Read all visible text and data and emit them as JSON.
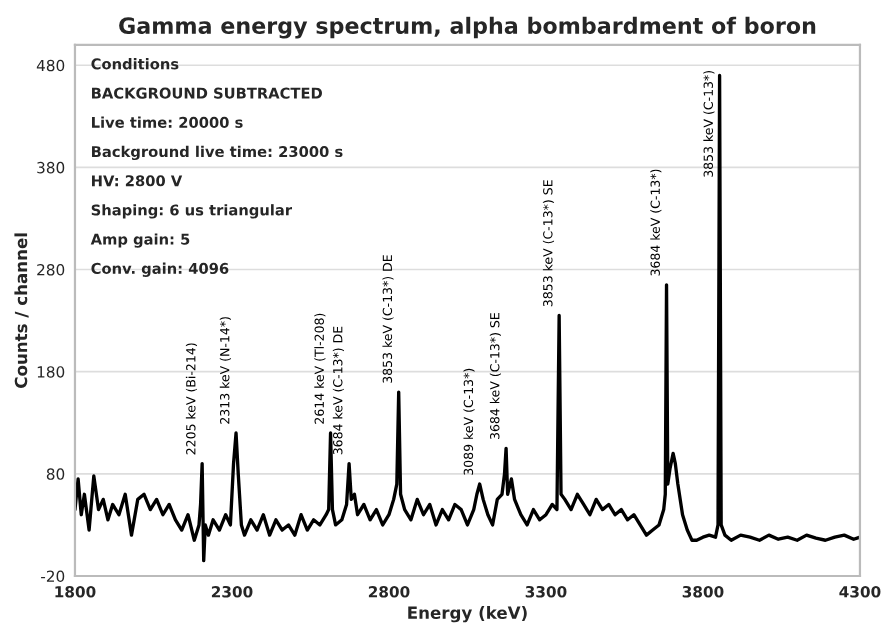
{
  "chart_data": {
    "type": "line",
    "title": "Gamma energy spectrum, alpha bombardment of boron",
    "xlabel": "Energy (keV)",
    "ylabel": "Counts / channel",
    "xlim": [
      1800,
      4300
    ],
    "xticks": [
      1800,
      2300,
      2800,
      3300,
      3800,
      4300
    ],
    "ylim": [
      -20,
      500
    ],
    "yticks": [
      -20,
      80,
      180,
      280,
      380,
      480
    ],
    "grid": "y",
    "legend": false,
    "marker": "none",
    "line_style": "solid",
    "series": [
      {
        "color": "#000000",
        "x": [
          1800,
          1810,
          1820,
          1830,
          1845,
          1860,
          1875,
          1890,
          1905,
          1920,
          1940,
          1960,
          1980,
          2000,
          2020,
          2040,
          2060,
          2080,
          2100,
          2120,
          2140,
          2160,
          2180,
          2195,
          2200,
          2205,
          2210,
          2215,
          2225,
          2240,
          2260,
          2280,
          2295,
          2305,
          2313,
          2320,
          2330,
          2340,
          2360,
          2380,
          2400,
          2420,
          2440,
          2460,
          2480,
          2500,
          2520,
          2540,
          2560,
          2580,
          2600,
          2608,
          2614,
          2620,
          2630,
          2650,
          2665,
          2673,
          2680,
          2690,
          2700,
          2720,
          2740,
          2760,
          2780,
          2800,
          2815,
          2825,
          2831,
          2837,
          2850,
          2870,
          2890,
          2910,
          2930,
          2950,
          2970,
          2990,
          3010,
          3030,
          3050,
          3070,
          3080,
          3089,
          3100,
          3115,
          3130,
          3145,
          3160,
          3168,
          3173,
          3178,
          3190,
          3200,
          3220,
          3240,
          3260,
          3280,
          3300,
          3320,
          3335,
          3342,
          3348,
          3360,
          3380,
          3400,
          3420,
          3440,
          3460,
          3480,
          3500,
          3520,
          3540,
          3560,
          3580,
          3600,
          3620,
          3640,
          3660,
          3675,
          3680,
          3684,
          3688,
          3695,
          3705,
          3712,
          3720,
          3735,
          3750,
          3765,
          3780,
          3800,
          3820,
          3840,
          3848,
          3853,
          3858,
          3870,
          3890,
          3920,
          3950,
          3980,
          4010,
          4040,
          4070,
          4100,
          4130,
          4160,
          4190,
          4220,
          4250,
          4280,
          4300
        ],
        "values": [
          45,
          75,
          40,
          60,
          25,
          78,
          45,
          55,
          35,
          50,
          40,
          60,
          20,
          55,
          60,
          45,
          55,
          40,
          50,
          35,
          25,
          40,
          15,
          30,
          50,
          90,
          -5,
          30,
          20,
          35,
          25,
          40,
          30,
          90,
          120,
          80,
          30,
          20,
          35,
          25,
          40,
          20,
          35,
          25,
          30,
          20,
          40,
          25,
          35,
          30,
          40,
          45,
          120,
          45,
          30,
          35,
          50,
          90,
          55,
          60,
          40,
          50,
          35,
          45,
          30,
          40,
          55,
          70,
          160,
          60,
          45,
          35,
          55,
          40,
          50,
          30,
          45,
          35,
          50,
          45,
          30,
          45,
          60,
          70,
          55,
          40,
          30,
          55,
          60,
          80,
          105,
          60,
          75,
          55,
          40,
          30,
          45,
          35,
          40,
          50,
          45,
          235,
          60,
          55,
          45,
          60,
          50,
          40,
          55,
          45,
          50,
          40,
          45,
          35,
          40,
          30,
          20,
          25,
          30,
          45,
          60,
          265,
          70,
          85,
          100,
          90,
          70,
          40,
          25,
          15,
          15,
          18,
          20,
          18,
          30,
          470,
          30,
          20,
          15,
          20,
          18,
          15,
          20,
          16,
          18,
          15,
          20,
          17,
          15,
          18,
          20,
          16,
          18
        ]
      }
    ],
    "annotations": [
      {
        "text": "2205 keV (Bi-214)",
        "x": 2205,
        "y": 90
      },
      {
        "text": "2313 keV (N-14*)",
        "x": 2313,
        "y": 120
      },
      {
        "text": "2614 keV (Tl-208)",
        "x": 2614,
        "y": 120
      },
      {
        "text": "3684 keV (C-13*) DE",
        "x": 2673,
        "y": 90
      },
      {
        "text": "3853 keV (C-13*) DE",
        "x": 2831,
        "y": 160
      },
      {
        "text": "3089 keV (C-13*)",
        "x": 3089,
        "y": 70
      },
      {
        "text": "3684 keV (C-13*) SE",
        "x": 3173,
        "y": 105
      },
      {
        "text": "3853 keV (C-13*) SE",
        "x": 3342,
        "y": 235
      },
      {
        "text": "3684 keV (C-13*)",
        "x": 3684,
        "y": 265
      },
      {
        "text": "3853 keV (C-13*)",
        "x": 3853,
        "y": 470
      },
      "Conditions",
      "BACKGROUND SUBTRACTED",
      "Live time: 20000 s",
      "Background live time: 23000 s",
      "HV: 2800 V",
      "Shaping: 6 us triangular",
      "Amp gain: 5",
      "Conv. gain: 4096"
    ]
  }
}
